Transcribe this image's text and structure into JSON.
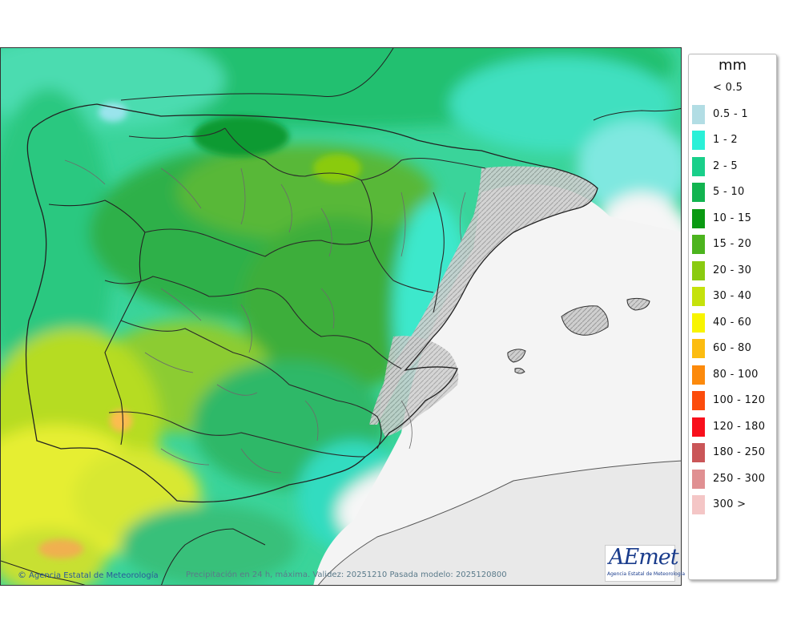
{
  "legend": {
    "unit": "mm",
    "entries": [
      {
        "label": "< 0.5",
        "color": ""
      },
      {
        "label": "0.5 - 1",
        "color": "#b2dde4"
      },
      {
        "label": "1 - 2",
        "color": "#2af0d8"
      },
      {
        "label": "2 - 5",
        "color": "#19cf8a"
      },
      {
        "label": "5 - 10",
        "color": "#12b450"
      },
      {
        "label": "10 - 15",
        "color": "#0a9a12"
      },
      {
        "label": "15 - 20",
        "color": "#4cb41e"
      },
      {
        "label": "20 - 30",
        "color": "#8acb10"
      },
      {
        "label": "30 - 40",
        "color": "#c5e20c"
      },
      {
        "label": "40 - 60",
        "color": "#f8f400"
      },
      {
        "label": "60 - 80",
        "color": "#fcbc10"
      },
      {
        "label": "80 - 100",
        "color": "#fc8a0c"
      },
      {
        "label": "100 - 120",
        "color": "#fc4c0c"
      },
      {
        "label": "120 - 180",
        "color": "#f8101c"
      },
      {
        "label": "180 - 250",
        "color": "#ca5658"
      },
      {
        "label": "250 - 300",
        "color": "#e09092"
      },
      {
        "label": "300 >",
        "color": "#f4c6c6"
      }
    ]
  },
  "map": {
    "credit": "Agencia Estatal de Meteorología",
    "caption": "Precipitación en 24 h, máxima. Validez: 20251210 Pasada modelo: 2025120800",
    "logo_text": "AEmet",
    "logo_subtitle": "Agencia Estatal de Meteorología"
  }
}
